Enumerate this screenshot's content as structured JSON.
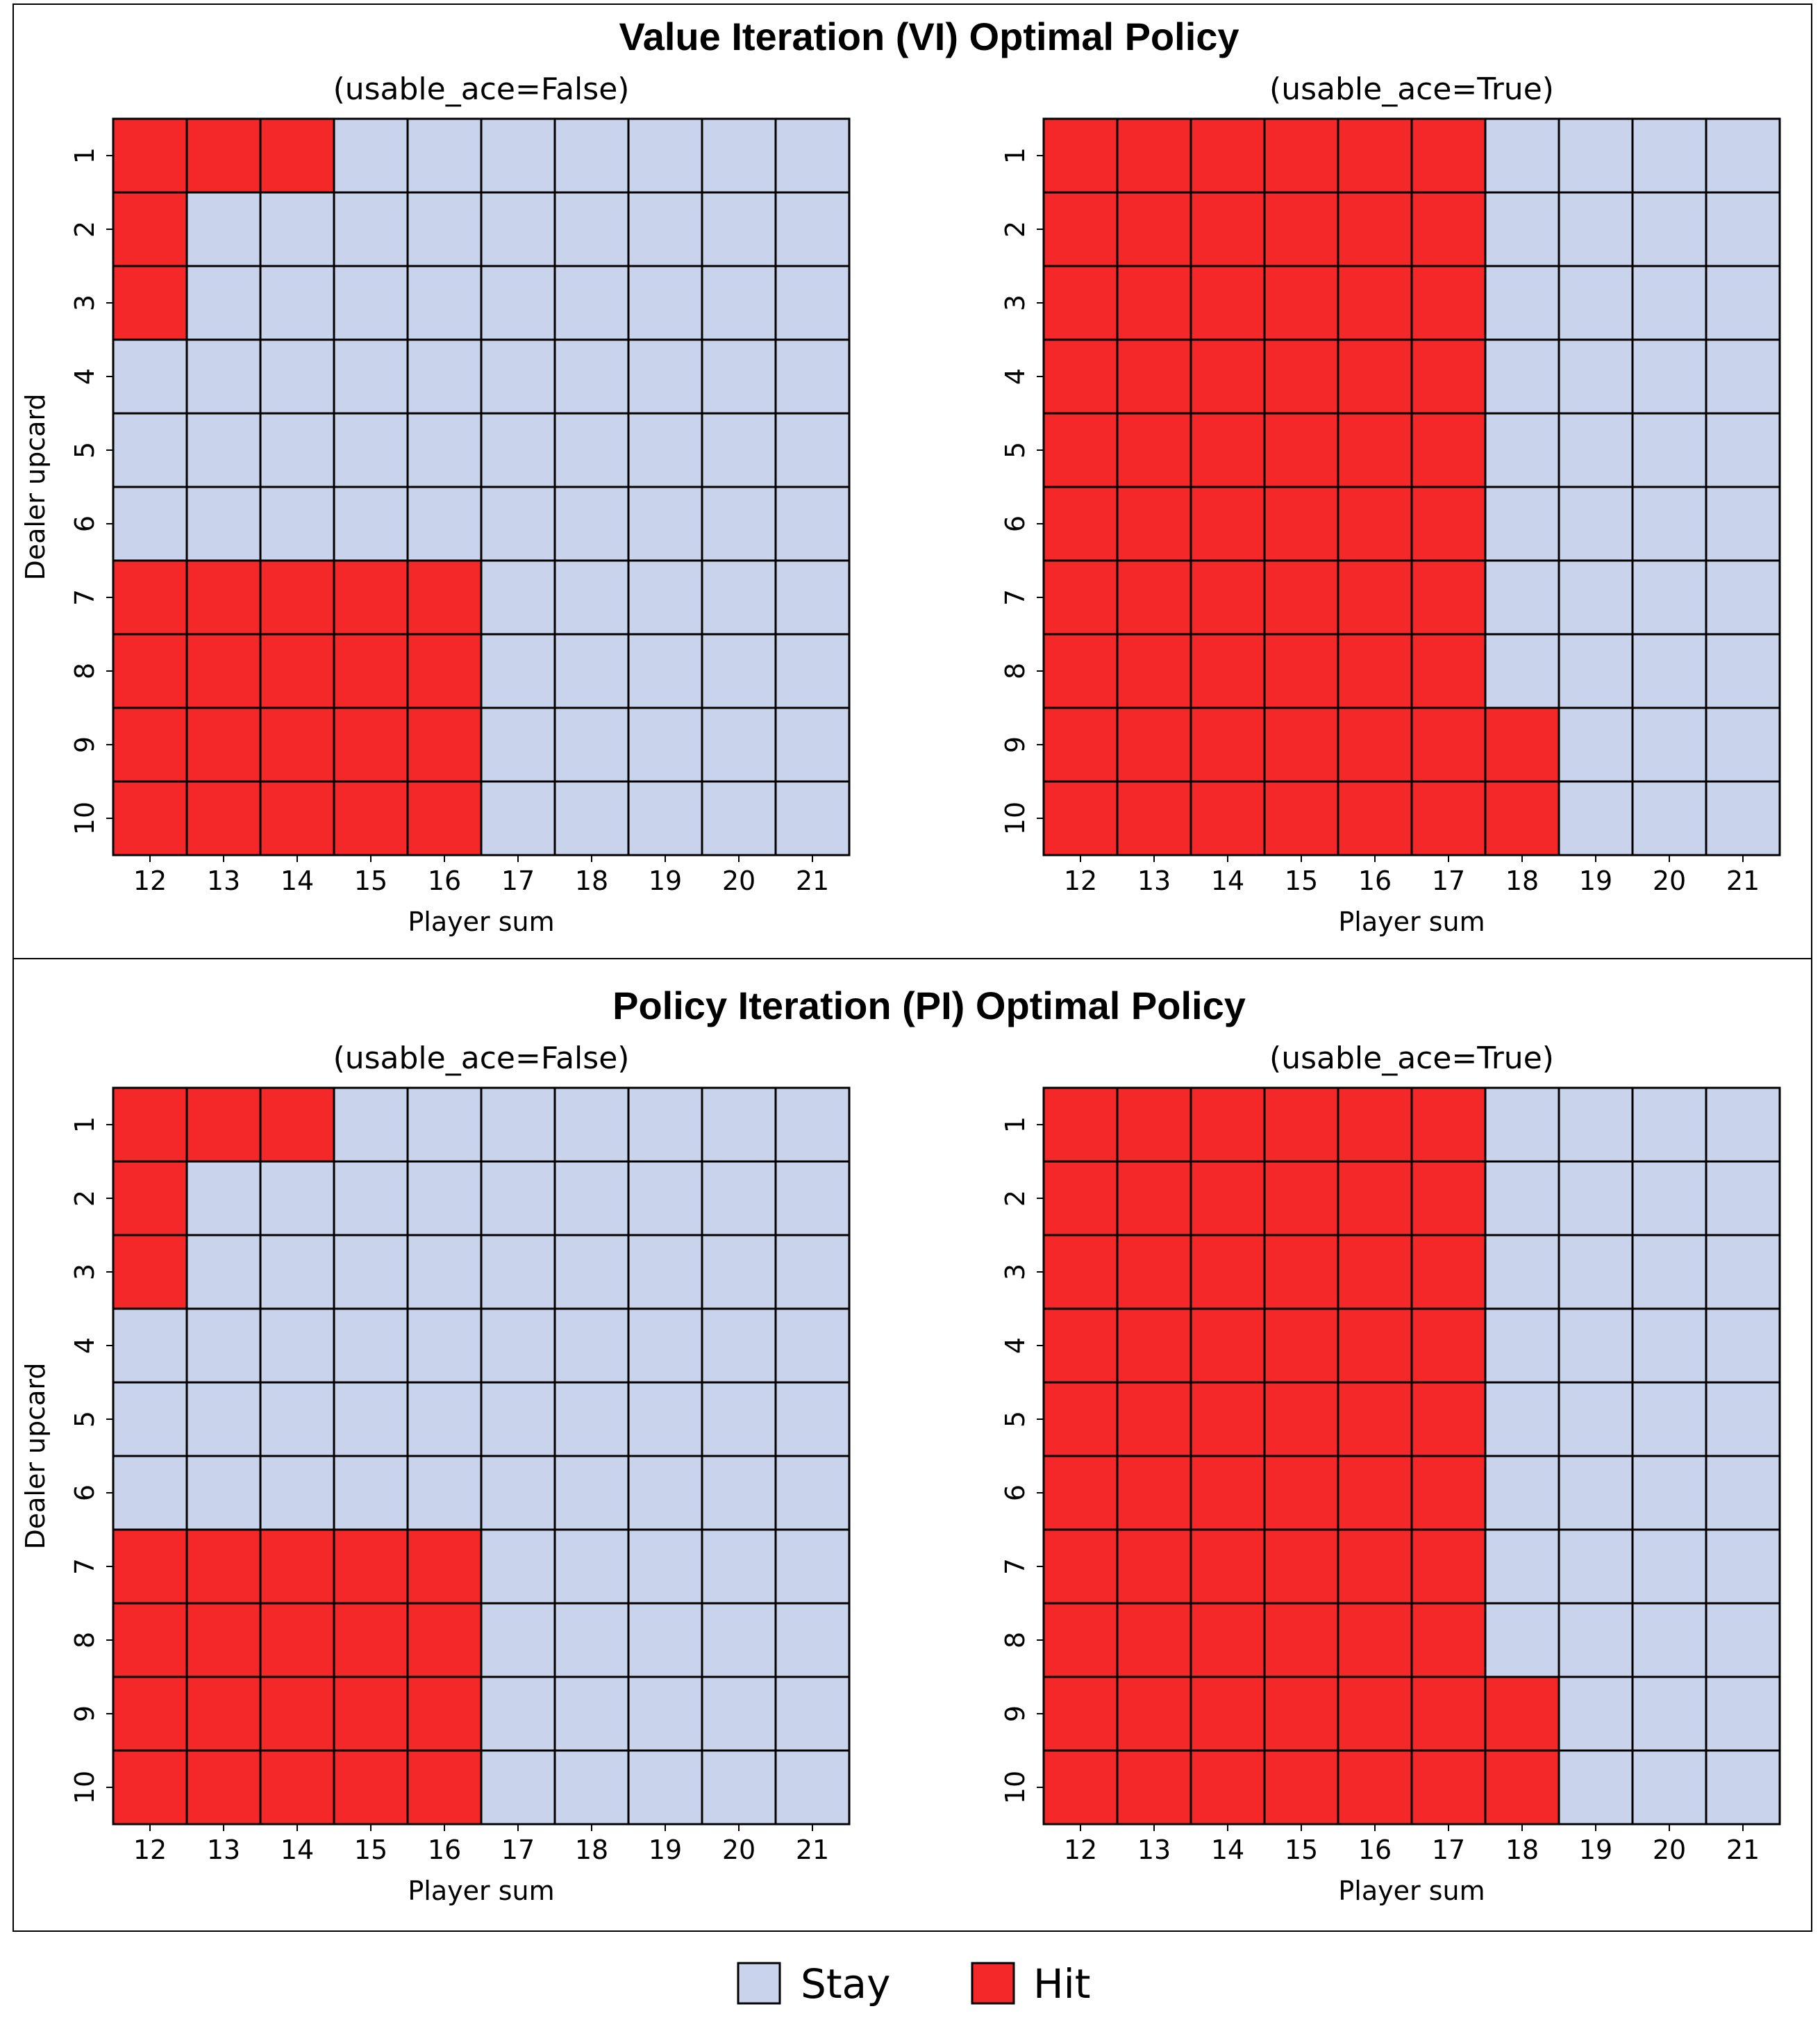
{
  "legend": {
    "items": [
      {
        "label": "Stay",
        "color": "#c9d3eb"
      },
      {
        "label": "Hit",
        "color": "#f42828"
      }
    ]
  },
  "chart_data": [
    {
      "type": "heatmap",
      "title": "Value Iteration (VI) Optimal Policy",
      "subtitle": "(usable_ace=False)",
      "xlabel": "Player sum",
      "ylabel": "Dealer upcard",
      "x": [
        12,
        13,
        14,
        15,
        16,
        17,
        18,
        19,
        20,
        21
      ],
      "y": [
        1,
        2,
        3,
        4,
        5,
        6,
        7,
        8,
        9,
        10
      ],
      "values": [
        [
          "Hit",
          "Hit",
          "Hit",
          "Stay",
          "Stay",
          "Stay",
          "Stay",
          "Stay",
          "Stay",
          "Stay"
        ],
        [
          "Hit",
          "Stay",
          "Stay",
          "Stay",
          "Stay",
          "Stay",
          "Stay",
          "Stay",
          "Stay",
          "Stay"
        ],
        [
          "Hit",
          "Stay",
          "Stay",
          "Stay",
          "Stay",
          "Stay",
          "Stay",
          "Stay",
          "Stay",
          "Stay"
        ],
        [
          "Stay",
          "Stay",
          "Stay",
          "Stay",
          "Stay",
          "Stay",
          "Stay",
          "Stay",
          "Stay",
          "Stay"
        ],
        [
          "Stay",
          "Stay",
          "Stay",
          "Stay",
          "Stay",
          "Stay",
          "Stay",
          "Stay",
          "Stay",
          "Stay"
        ],
        [
          "Stay",
          "Stay",
          "Stay",
          "Stay",
          "Stay",
          "Stay",
          "Stay",
          "Stay",
          "Stay",
          "Stay"
        ],
        [
          "Hit",
          "Hit",
          "Hit",
          "Hit",
          "Hit",
          "Stay",
          "Stay",
          "Stay",
          "Stay",
          "Stay"
        ],
        [
          "Hit",
          "Hit",
          "Hit",
          "Hit",
          "Hit",
          "Stay",
          "Stay",
          "Stay",
          "Stay",
          "Stay"
        ],
        [
          "Hit",
          "Hit",
          "Hit",
          "Hit",
          "Hit",
          "Stay",
          "Stay",
          "Stay",
          "Stay",
          "Stay"
        ],
        [
          "Hit",
          "Hit",
          "Hit",
          "Hit",
          "Hit",
          "Stay",
          "Stay",
          "Stay",
          "Stay",
          "Stay"
        ]
      ]
    },
    {
      "type": "heatmap",
      "title": "Value Iteration (VI) Optimal Policy",
      "subtitle": "(usable_ace=True)",
      "xlabel": "Player sum",
      "ylabel": "",
      "x": [
        12,
        13,
        14,
        15,
        16,
        17,
        18,
        19,
        20,
        21
      ],
      "y": [
        1,
        2,
        3,
        4,
        5,
        6,
        7,
        8,
        9,
        10
      ],
      "values": [
        [
          "Hit",
          "Hit",
          "Hit",
          "Hit",
          "Hit",
          "Hit",
          "Stay",
          "Stay",
          "Stay",
          "Stay"
        ],
        [
          "Hit",
          "Hit",
          "Hit",
          "Hit",
          "Hit",
          "Hit",
          "Stay",
          "Stay",
          "Stay",
          "Stay"
        ],
        [
          "Hit",
          "Hit",
          "Hit",
          "Hit",
          "Hit",
          "Hit",
          "Stay",
          "Stay",
          "Stay",
          "Stay"
        ],
        [
          "Hit",
          "Hit",
          "Hit",
          "Hit",
          "Hit",
          "Hit",
          "Stay",
          "Stay",
          "Stay",
          "Stay"
        ],
        [
          "Hit",
          "Hit",
          "Hit",
          "Hit",
          "Hit",
          "Hit",
          "Stay",
          "Stay",
          "Stay",
          "Stay"
        ],
        [
          "Hit",
          "Hit",
          "Hit",
          "Hit",
          "Hit",
          "Hit",
          "Stay",
          "Stay",
          "Stay",
          "Stay"
        ],
        [
          "Hit",
          "Hit",
          "Hit",
          "Hit",
          "Hit",
          "Hit",
          "Stay",
          "Stay",
          "Stay",
          "Stay"
        ],
        [
          "Hit",
          "Hit",
          "Hit",
          "Hit",
          "Hit",
          "Hit",
          "Stay",
          "Stay",
          "Stay",
          "Stay"
        ],
        [
          "Hit",
          "Hit",
          "Hit",
          "Hit",
          "Hit",
          "Hit",
          "Hit",
          "Stay",
          "Stay",
          "Stay"
        ],
        [
          "Hit",
          "Hit",
          "Hit",
          "Hit",
          "Hit",
          "Hit",
          "Hit",
          "Stay",
          "Stay",
          "Stay"
        ]
      ]
    },
    {
      "type": "heatmap",
      "title": "Policy Iteration (PI) Optimal Policy",
      "subtitle": "(usable_ace=False)",
      "xlabel": "Player sum",
      "ylabel": "Dealer upcard",
      "x": [
        12,
        13,
        14,
        15,
        16,
        17,
        18,
        19,
        20,
        21
      ],
      "y": [
        1,
        2,
        3,
        4,
        5,
        6,
        7,
        8,
        9,
        10
      ],
      "values": [
        [
          "Hit",
          "Hit",
          "Hit",
          "Stay",
          "Stay",
          "Stay",
          "Stay",
          "Stay",
          "Stay",
          "Stay"
        ],
        [
          "Hit",
          "Stay",
          "Stay",
          "Stay",
          "Stay",
          "Stay",
          "Stay",
          "Stay",
          "Stay",
          "Stay"
        ],
        [
          "Hit",
          "Stay",
          "Stay",
          "Stay",
          "Stay",
          "Stay",
          "Stay",
          "Stay",
          "Stay",
          "Stay"
        ],
        [
          "Stay",
          "Stay",
          "Stay",
          "Stay",
          "Stay",
          "Stay",
          "Stay",
          "Stay",
          "Stay",
          "Stay"
        ],
        [
          "Stay",
          "Stay",
          "Stay",
          "Stay",
          "Stay",
          "Stay",
          "Stay",
          "Stay",
          "Stay",
          "Stay"
        ],
        [
          "Stay",
          "Stay",
          "Stay",
          "Stay",
          "Stay",
          "Stay",
          "Stay",
          "Stay",
          "Stay",
          "Stay"
        ],
        [
          "Hit",
          "Hit",
          "Hit",
          "Hit",
          "Hit",
          "Stay",
          "Stay",
          "Stay",
          "Stay",
          "Stay"
        ],
        [
          "Hit",
          "Hit",
          "Hit",
          "Hit",
          "Hit",
          "Stay",
          "Stay",
          "Stay",
          "Stay",
          "Stay"
        ],
        [
          "Hit",
          "Hit",
          "Hit",
          "Hit",
          "Hit",
          "Stay",
          "Stay",
          "Stay",
          "Stay",
          "Stay"
        ],
        [
          "Hit",
          "Hit",
          "Hit",
          "Hit",
          "Hit",
          "Stay",
          "Stay",
          "Stay",
          "Stay",
          "Stay"
        ]
      ]
    },
    {
      "type": "heatmap",
      "title": "Policy Iteration (PI) Optimal Policy",
      "subtitle": "(usable_ace=True)",
      "xlabel": "Player sum",
      "ylabel": "",
      "x": [
        12,
        13,
        14,
        15,
        16,
        17,
        18,
        19,
        20,
        21
      ],
      "y": [
        1,
        2,
        3,
        4,
        5,
        6,
        7,
        8,
        9,
        10
      ],
      "values": [
        [
          "Hit",
          "Hit",
          "Hit",
          "Hit",
          "Hit",
          "Hit",
          "Stay",
          "Stay",
          "Stay",
          "Stay"
        ],
        [
          "Hit",
          "Hit",
          "Hit",
          "Hit",
          "Hit",
          "Hit",
          "Stay",
          "Stay",
          "Stay",
          "Stay"
        ],
        [
          "Hit",
          "Hit",
          "Hit",
          "Hit",
          "Hit",
          "Hit",
          "Stay",
          "Stay",
          "Stay",
          "Stay"
        ],
        [
          "Hit",
          "Hit",
          "Hit",
          "Hit",
          "Hit",
          "Hit",
          "Stay",
          "Stay",
          "Stay",
          "Stay"
        ],
        [
          "Hit",
          "Hit",
          "Hit",
          "Hit",
          "Hit",
          "Hit",
          "Stay",
          "Stay",
          "Stay",
          "Stay"
        ],
        [
          "Hit",
          "Hit",
          "Hit",
          "Hit",
          "Hit",
          "Hit",
          "Stay",
          "Stay",
          "Stay",
          "Stay"
        ],
        [
          "Hit",
          "Hit",
          "Hit",
          "Hit",
          "Hit",
          "Hit",
          "Stay",
          "Stay",
          "Stay",
          "Stay"
        ],
        [
          "Hit",
          "Hit",
          "Hit",
          "Hit",
          "Hit",
          "Hit",
          "Stay",
          "Stay",
          "Stay",
          "Stay"
        ],
        [
          "Hit",
          "Hit",
          "Hit",
          "Hit",
          "Hit",
          "Hit",
          "Hit",
          "Stay",
          "Stay",
          "Stay"
        ],
        [
          "Hit",
          "Hit",
          "Hit",
          "Hit",
          "Hit",
          "Hit",
          "Hit",
          "Stay",
          "Stay",
          "Stay"
        ]
      ]
    }
  ]
}
